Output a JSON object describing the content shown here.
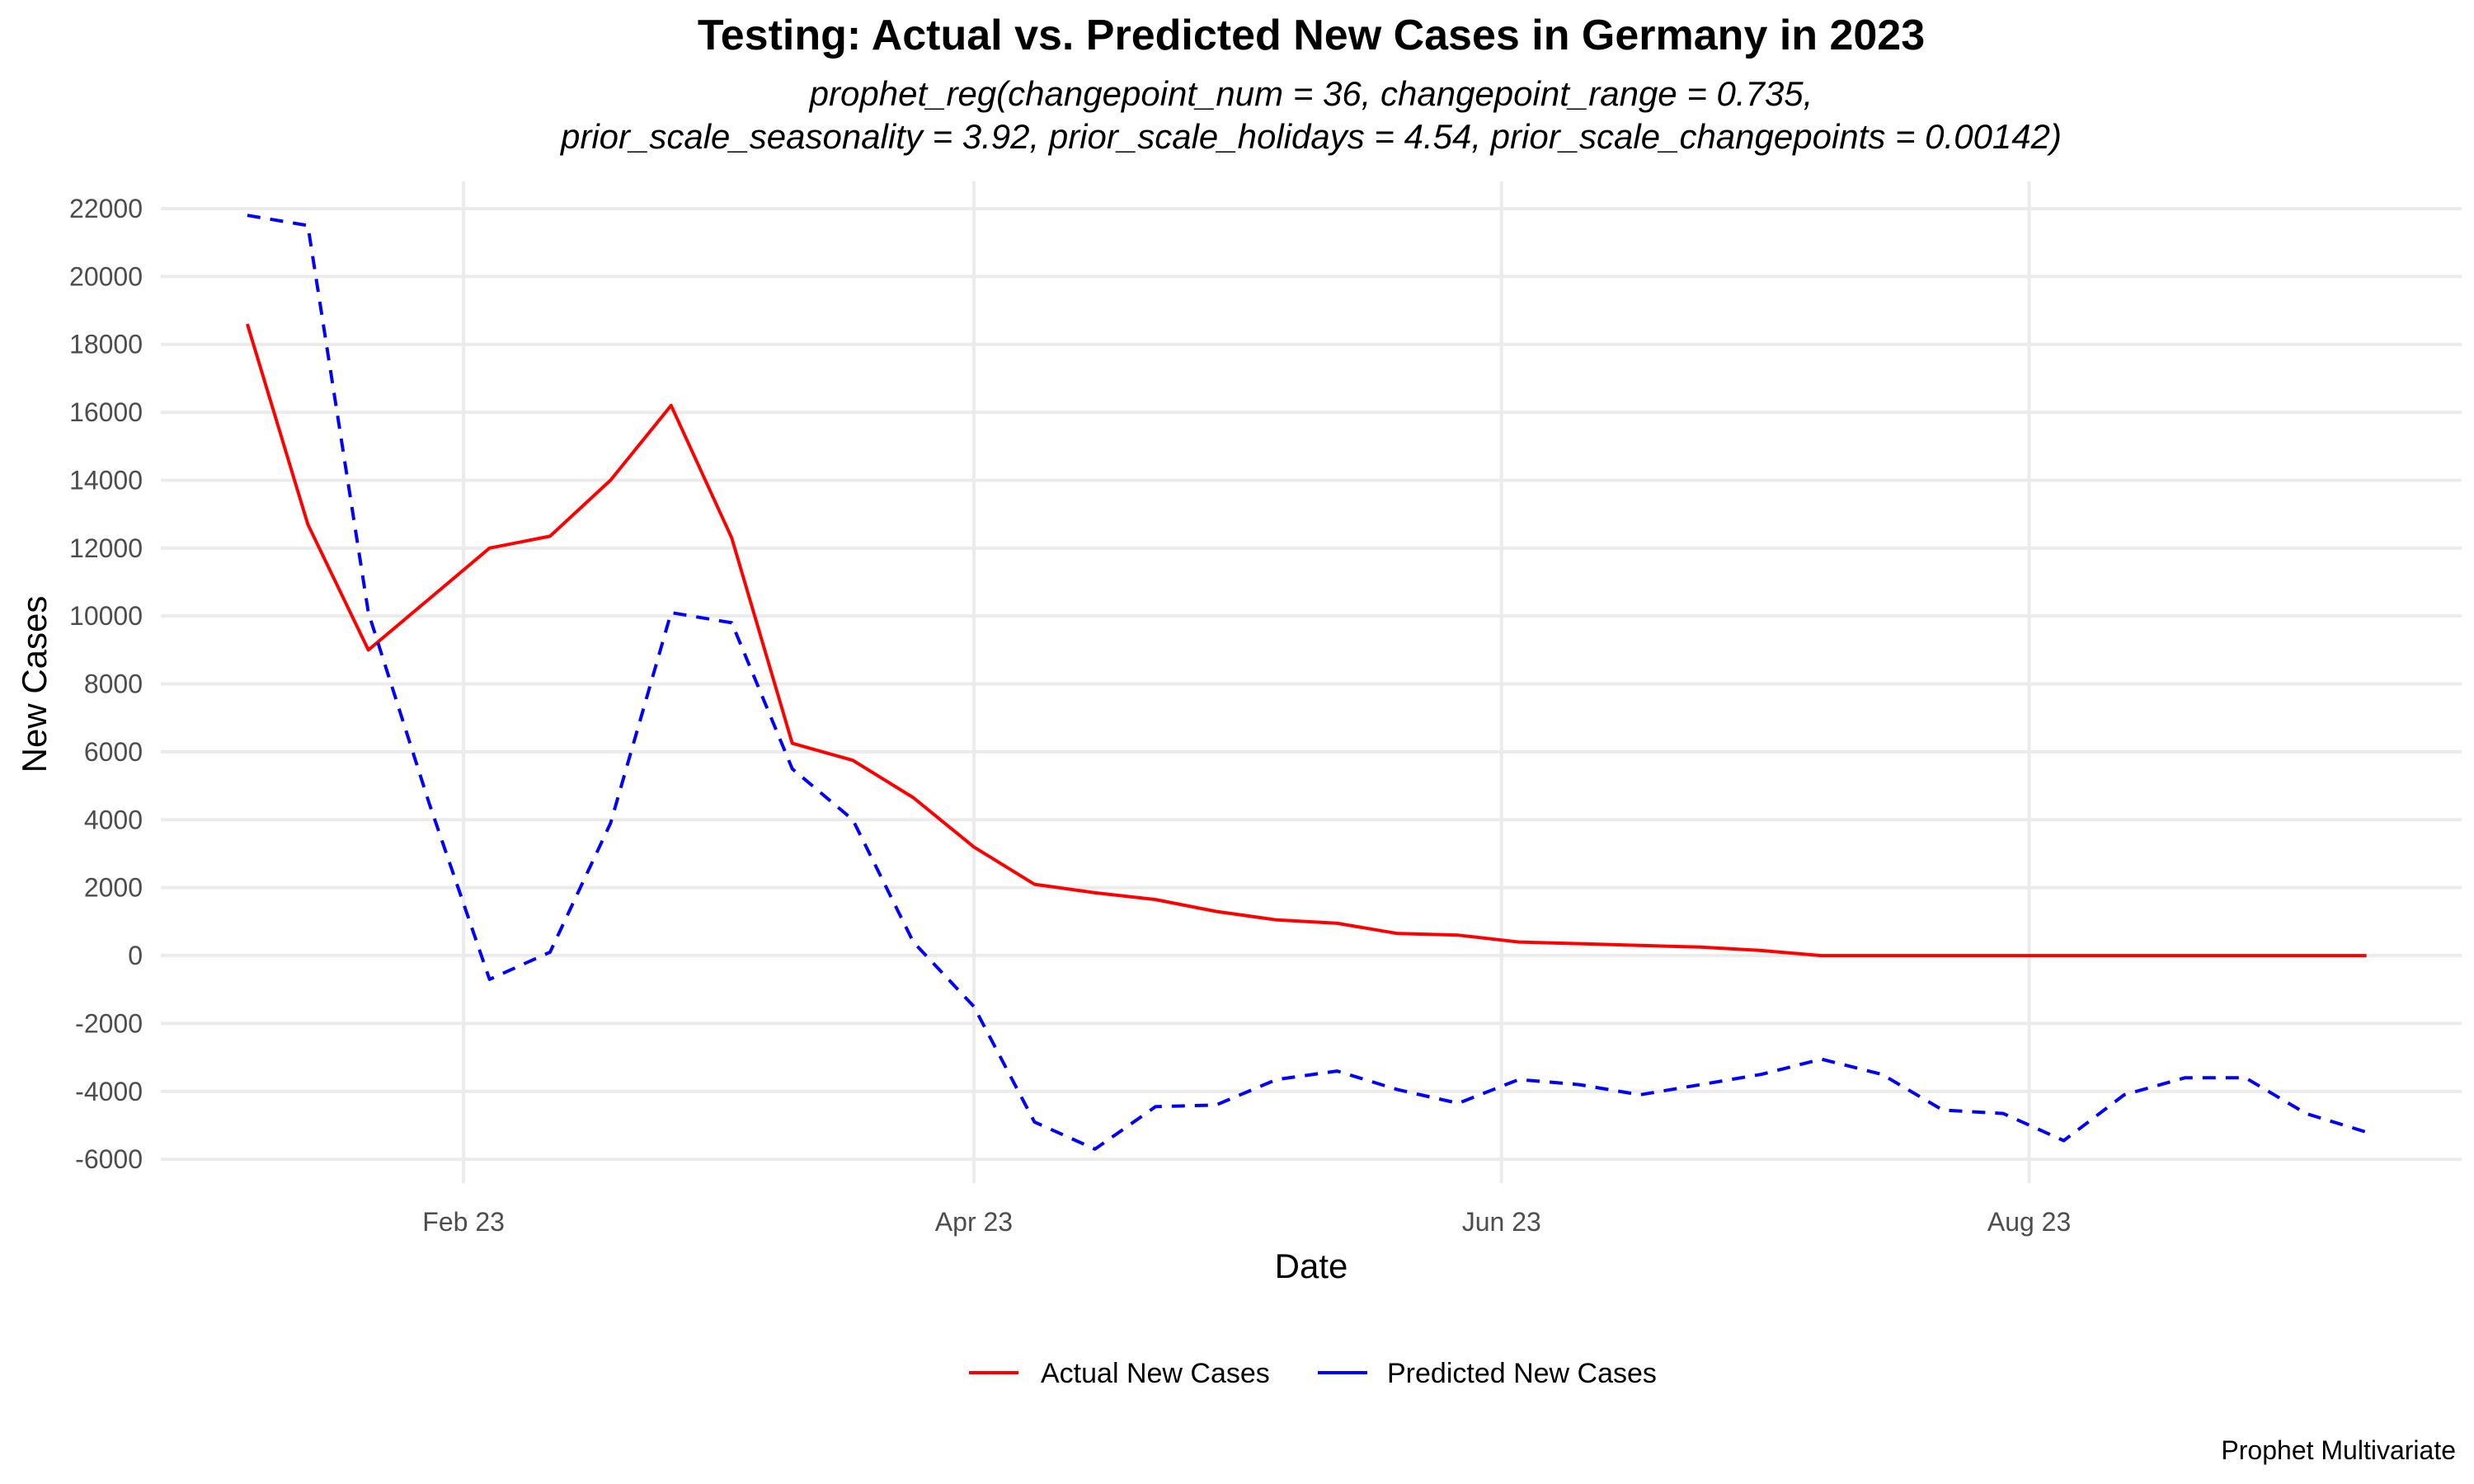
{
  "chart_data": {
    "type": "line",
    "title": "Testing: Actual vs. Predicted New Cases in Germany in 2023",
    "subtitle": [
      "prophet_reg(changepoint_num = 36, changepoint_range = 0.735,",
      "prior_scale_seasonality = 3.92, prior_scale_holidays = 4.54, prior_scale_changepoints = 0.00142)"
    ],
    "xlabel": "Date",
    "ylabel": "New Cases",
    "caption": "Prophet Multivariate",
    "x_ticks": [
      {
        "date": "2023-02-01",
        "label": "Feb 23"
      },
      {
        "date": "2023-04-01",
        "label": "Apr 23"
      },
      {
        "date": "2023-06-01",
        "label": "Jun 23"
      },
      {
        "date": "2023-08-01",
        "label": "Aug 23"
      }
    ],
    "y_ticks": [
      "22000",
      "20000",
      "18000",
      "16000",
      "14000",
      "12000",
      "10000",
      "8000",
      "6000",
      "4000",
      "2000",
      "0",
      "-2000",
      "-4000",
      "-6000"
    ],
    "xlim": [
      "2022-12-28",
      "2023-09-20"
    ],
    "ylim": [
      -6700,
      22800
    ],
    "grid": true,
    "legend_position": "bottom",
    "x": [
      "2023-01-07",
      "2023-01-14",
      "2023-01-21",
      "2023-01-28",
      "2023-02-04",
      "2023-02-11",
      "2023-02-18",
      "2023-02-25",
      "2023-03-04",
      "2023-03-11",
      "2023-03-18",
      "2023-03-25",
      "2023-04-01",
      "2023-04-08",
      "2023-04-15",
      "2023-04-22",
      "2023-04-29",
      "2023-05-06",
      "2023-05-13",
      "2023-05-20",
      "2023-05-27",
      "2023-06-03",
      "2023-06-10",
      "2023-06-17",
      "2023-06-24",
      "2023-07-01",
      "2023-07-08",
      "2023-07-15",
      "2023-07-22",
      "2023-07-29",
      "2023-08-05",
      "2023-08-12",
      "2023-08-19",
      "2023-08-26",
      "2023-09-02",
      "2023-09-09"
    ],
    "series": [
      {
        "name": "Actual New Cases",
        "color": "#ff0000",
        "dash": "solid",
        "values": [
          18600,
          12700,
          9000,
          10500,
          12000,
          12350,
          14000,
          16200,
          12300,
          6250,
          5750,
          4650,
          3200,
          2100,
          1850,
          1650,
          1300,
          1050,
          950,
          650,
          600,
          400,
          350,
          300,
          250,
          150,
          0,
          0,
          0,
          0,
          0,
          0,
          0,
          0,
          0,
          0
        ]
      },
      {
        "name": "Predicted New Cases",
        "color": "#0000ff",
        "dash": "dashed",
        "values": [
          21800,
          21500,
          10100,
          4500,
          -700,
          100,
          3900,
          10100,
          9800,
          5500,
          4000,
          400,
          -1500,
          -4900,
          -5700,
          -4450,
          -4400,
          -3650,
          -3400,
          -3950,
          -4350,
          -3650,
          -3800,
          -4100,
          -3800,
          -3500,
          -3050,
          -3500,
          -4550,
          -4650,
          -5450,
          -4100,
          -3600,
          -3600,
          -4650,
          -5200
        ]
      }
    ]
  }
}
